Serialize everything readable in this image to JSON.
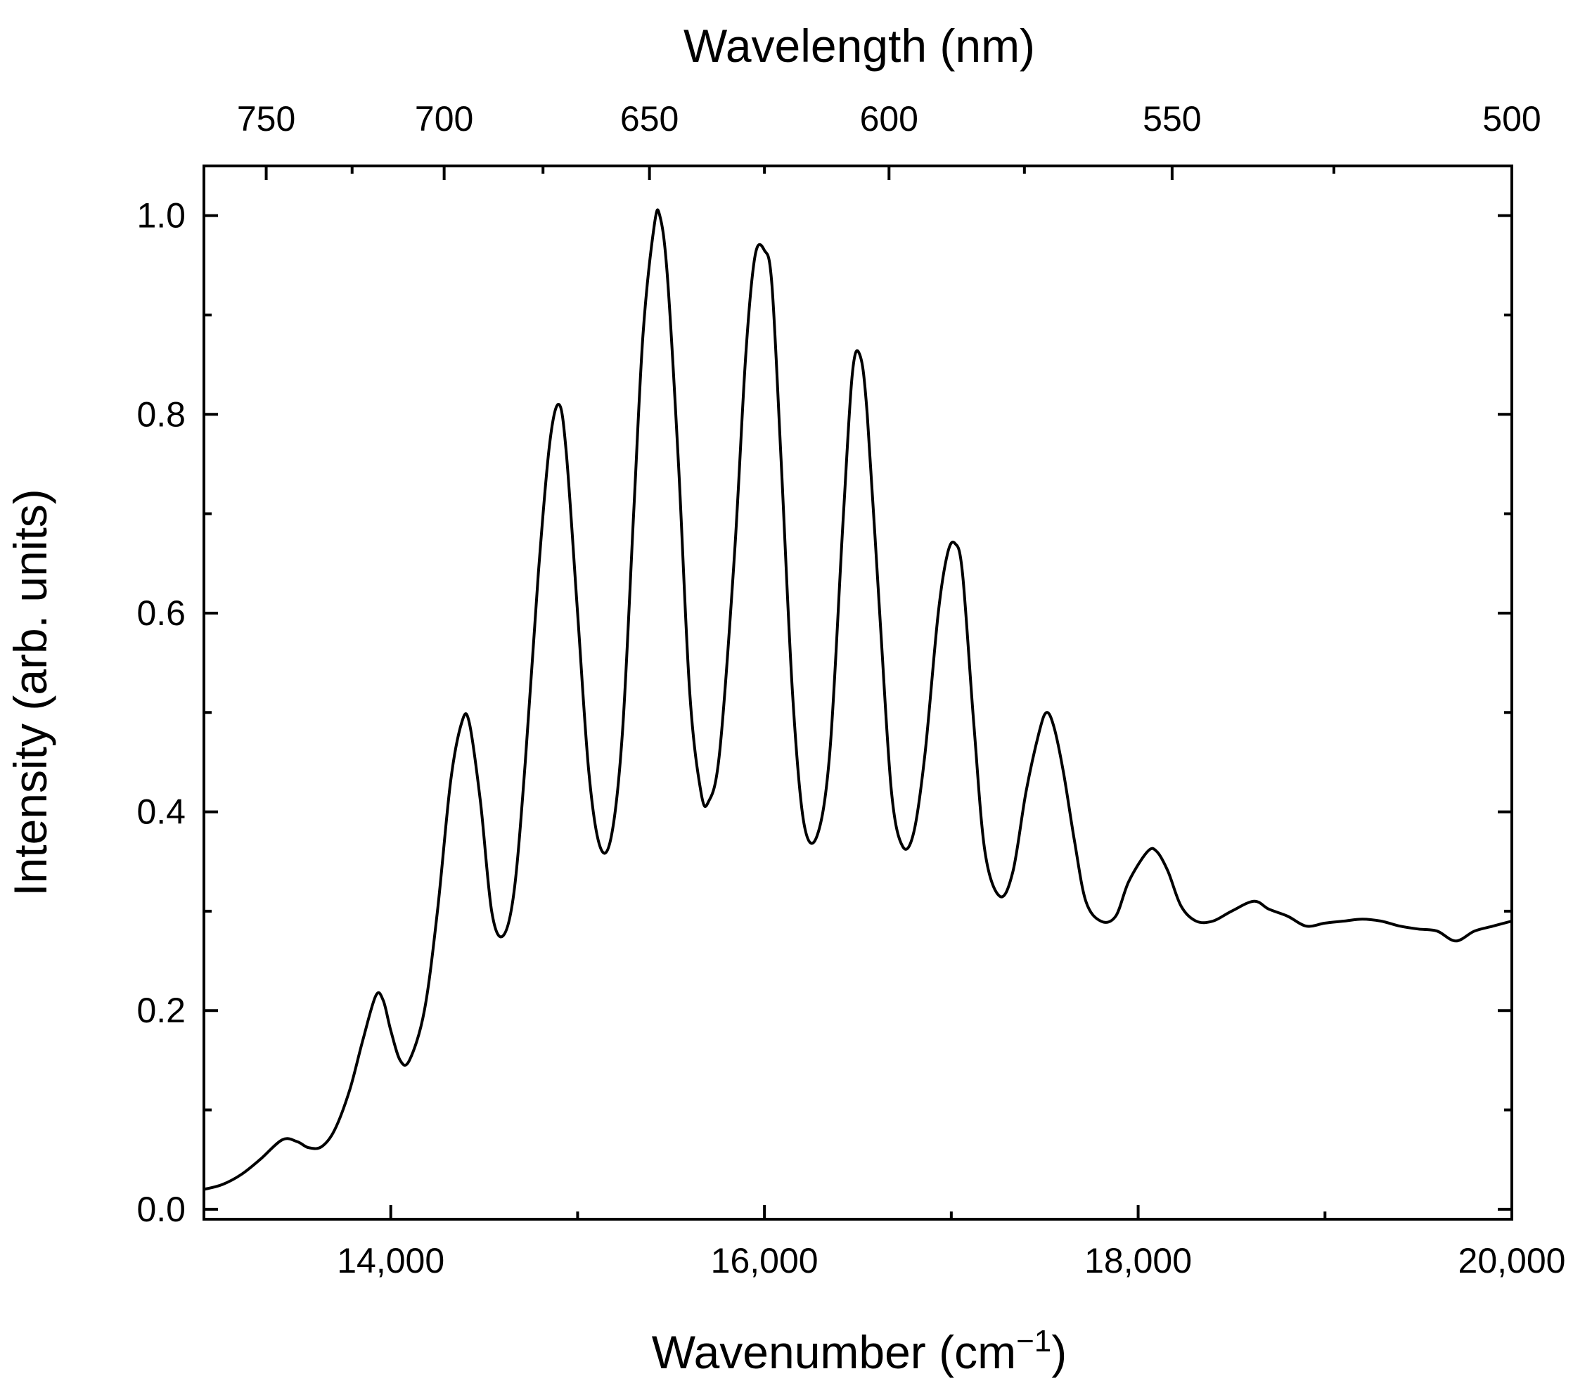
{
  "chart_data": {
    "type": "line",
    "title": "",
    "xlabel": "Wavenumber (cm",
    "xlabel_superscript": "−1",
    "xlabel_suffix": ")",
    "ylabel": "Intensity (arb. units)",
    "top_xlabel": "Wavelength (nm)",
    "xlim": [
      13000,
      20000
    ],
    "ylim": [
      -0.01,
      1.05
    ],
    "x_ticks": [
      {
        "value": 14000,
        "label": "14,000"
      },
      {
        "value": 16000,
        "label": "16,000"
      },
      {
        "value": 18000,
        "label": "18,000"
      },
      {
        "value": 20000,
        "label": "20,000"
      }
    ],
    "x_minor_ticks": [
      15000,
      17000,
      19000
    ],
    "y_ticks": [
      {
        "value": 0.0,
        "label": "0.0"
      },
      {
        "value": 0.2,
        "label": "0.2"
      },
      {
        "value": 0.4,
        "label": "0.4"
      },
      {
        "value": 0.6,
        "label": "0.6"
      },
      {
        "value": 0.8,
        "label": "0.8"
      },
      {
        "value": 1.0,
        "label": "1.0"
      }
    ],
    "y_minor_ticks": [
      0.1,
      0.3,
      0.5,
      0.7,
      0.9
    ],
    "top_ticks": [
      {
        "wavelength": 750,
        "label": "750"
      },
      {
        "wavelength": 700,
        "label": "700"
      },
      {
        "wavelength": 650,
        "label": "650"
      },
      {
        "wavelength": 600,
        "label": "600"
      },
      {
        "wavelength": 550,
        "label": "550"
      },
      {
        "wavelength": 500,
        "label": "500"
      }
    ],
    "top_minor_ticks": [
      725,
      675,
      625,
      575,
      525
    ],
    "grid": false,
    "series": [
      {
        "name": "spectrum",
        "color": "#000000",
        "points": [
          [
            13000,
            0.02
          ],
          [
            13100,
            0.025
          ],
          [
            13200,
            0.035
          ],
          [
            13300,
            0.05
          ],
          [
            13420,
            0.07
          ],
          [
            13500,
            0.068
          ],
          [
            13560,
            0.062
          ],
          [
            13630,
            0.063
          ],
          [
            13700,
            0.08
          ],
          [
            13780,
            0.12
          ],
          [
            13850,
            0.17
          ],
          [
            13920,
            0.215
          ],
          [
            13960,
            0.21
          ],
          [
            14000,
            0.18
          ],
          [
            14050,
            0.15
          ],
          [
            14100,
            0.15
          ],
          [
            14180,
            0.2
          ],
          [
            14250,
            0.3
          ],
          [
            14320,
            0.43
          ],
          [
            14380,
            0.49
          ],
          [
            14420,
            0.49
          ],
          [
            14480,
            0.41
          ],
          [
            14540,
            0.3
          ],
          [
            14600,
            0.275
          ],
          [
            14660,
            0.32
          ],
          [
            14720,
            0.45
          ],
          [
            14790,
            0.64
          ],
          [
            14850,
            0.77
          ],
          [
            14900,
            0.81
          ],
          [
            14940,
            0.76
          ],
          [
            15000,
            0.6
          ],
          [
            15060,
            0.44
          ],
          [
            15120,
            0.365
          ],
          [
            15180,
            0.375
          ],
          [
            15240,
            0.48
          ],
          [
            15300,
            0.7
          ],
          [
            15350,
            0.88
          ],
          [
            15410,
            0.99
          ],
          [
            15440,
            1.0
          ],
          [
            15480,
            0.94
          ],
          [
            15540,
            0.75
          ],
          [
            15600,
            0.52
          ],
          [
            15660,
            0.42
          ],
          [
            15700,
            0.41
          ],
          [
            15760,
            0.46
          ],
          [
            15840,
            0.66
          ],
          [
            15900,
            0.86
          ],
          [
            15950,
            0.96
          ],
          [
            16000,
            0.965
          ],
          [
            16040,
            0.93
          ],
          [
            16090,
            0.75
          ],
          [
            16150,
            0.52
          ],
          [
            16210,
            0.39
          ],
          [
            16280,
            0.375
          ],
          [
            16350,
            0.46
          ],
          [
            16420,
            0.69
          ],
          [
            16470,
            0.84
          ],
          [
            16510,
            0.86
          ],
          [
            16550,
            0.8
          ],
          [
            16620,
            0.59
          ],
          [
            16680,
            0.42
          ],
          [
            16740,
            0.365
          ],
          [
            16800,
            0.38
          ],
          [
            16860,
            0.46
          ],
          [
            16930,
            0.6
          ],
          [
            16980,
            0.66
          ],
          [
            17020,
            0.67
          ],
          [
            17060,
            0.64
          ],
          [
            17120,
            0.49
          ],
          [
            17180,
            0.36
          ],
          [
            17260,
            0.315
          ],
          [
            17330,
            0.34
          ],
          [
            17400,
            0.42
          ],
          [
            17470,
            0.48
          ],
          [
            17510,
            0.5
          ],
          [
            17550,
            0.485
          ],
          [
            17600,
            0.44
          ],
          [
            17660,
            0.37
          ],
          [
            17720,
            0.31
          ],
          [
            17800,
            0.29
          ],
          [
            17880,
            0.295
          ],
          [
            17950,
            0.33
          ],
          [
            18050,
            0.36
          ],
          [
            18100,
            0.36
          ],
          [
            18160,
            0.34
          ],
          [
            18230,
            0.305
          ],
          [
            18310,
            0.29
          ],
          [
            18400,
            0.29
          ],
          [
            18500,
            0.3
          ],
          [
            18620,
            0.31
          ],
          [
            18700,
            0.302
          ],
          [
            18800,
            0.295
          ],
          [
            18900,
            0.285
          ],
          [
            19000,
            0.288
          ],
          [
            19100,
            0.29
          ],
          [
            19200,
            0.292
          ],
          [
            19300,
            0.29
          ],
          [
            19400,
            0.285
          ],
          [
            19500,
            0.282
          ],
          [
            19600,
            0.28
          ],
          [
            19700,
            0.27
          ],
          [
            19800,
            0.28
          ],
          [
            19900,
            0.285
          ],
          [
            20000,
            0.29
          ]
        ]
      }
    ]
  }
}
